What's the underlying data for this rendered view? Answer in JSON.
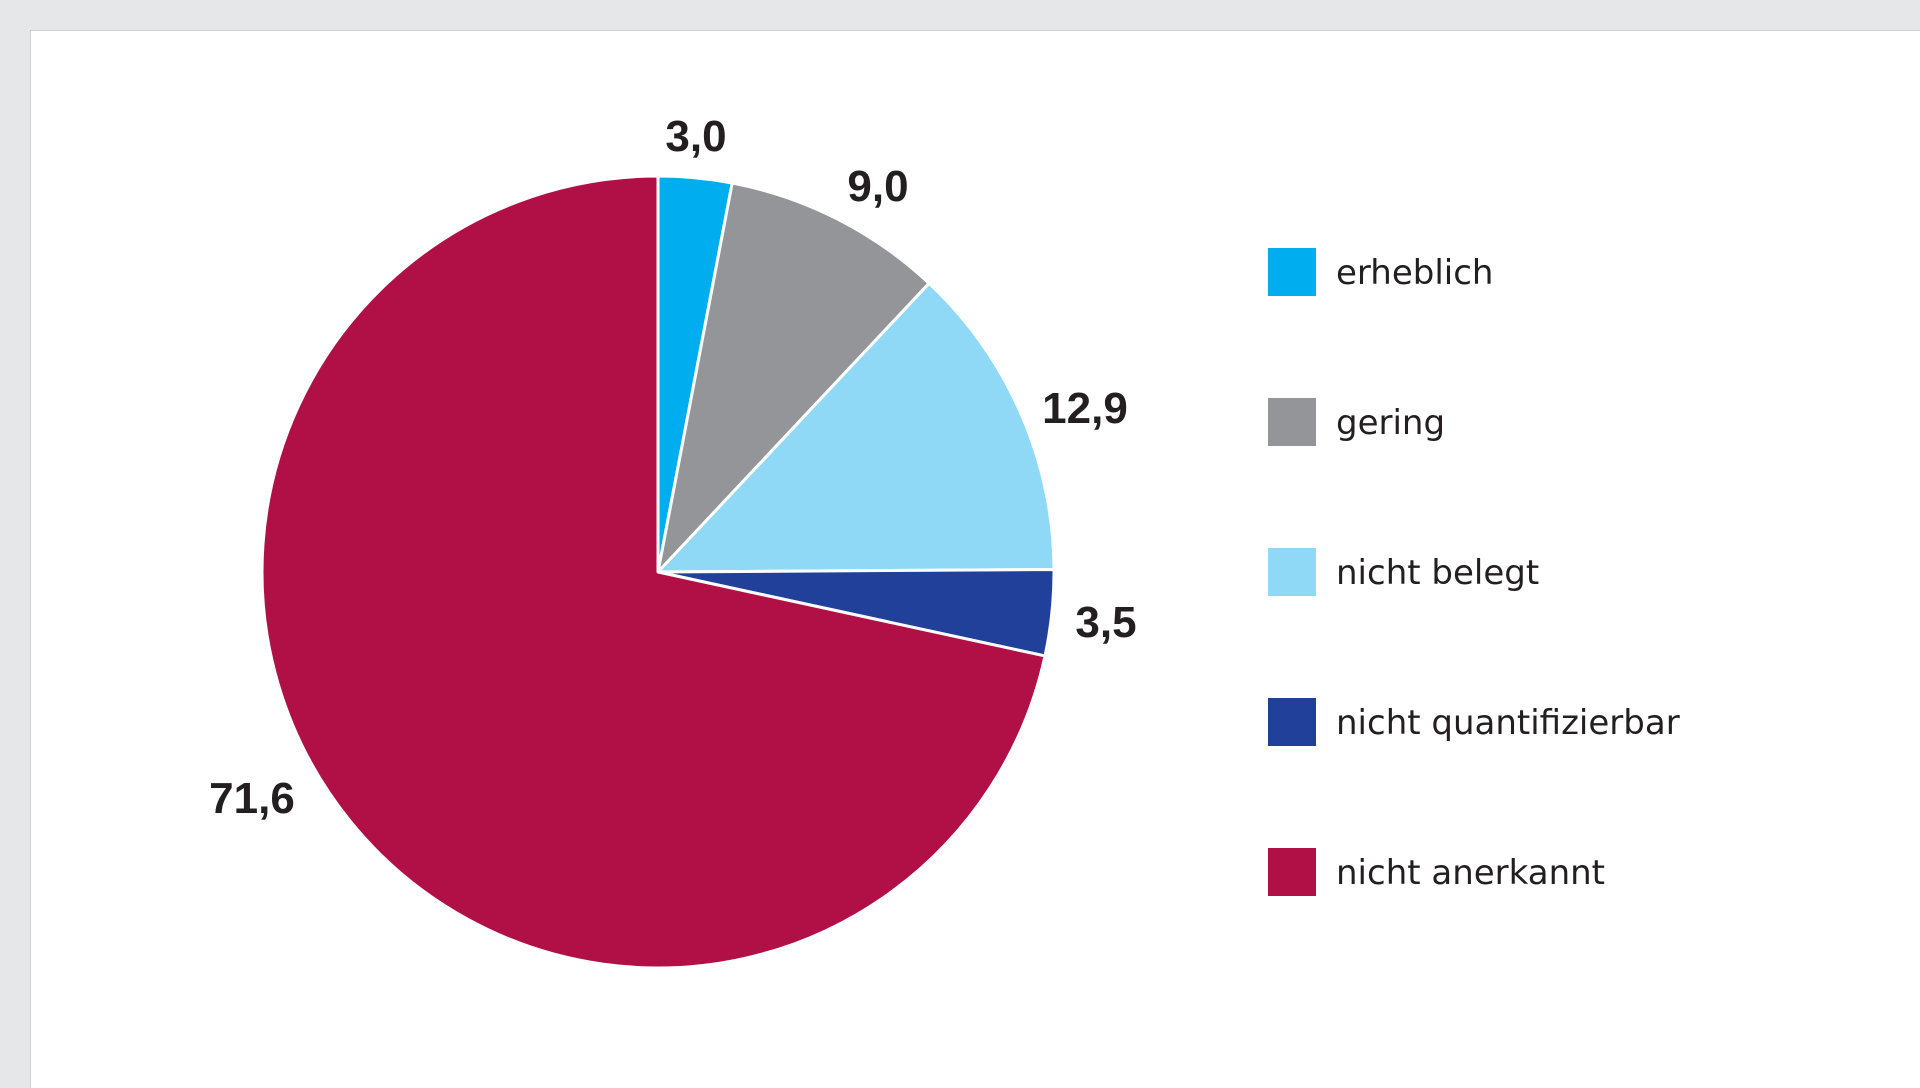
{
  "chart_data": {
    "type": "pie",
    "start": "12 o'clock",
    "direction": "clockwise",
    "slices": [
      {
        "label": "erheblich",
        "value": 3.0,
        "value_text": "3,0",
        "color": "#00aeef"
      },
      {
        "label": "gering",
        "value": 9.0,
        "value_text": "9,0",
        "color": "#939598"
      },
      {
        "label": "nicht belegt",
        "value": 12.9,
        "value_text": "12,9",
        "color": "#8fd8f6"
      },
      {
        "label": "nicht quantifizierbar",
        "value": 3.5,
        "value_text": "3,5",
        "color": "#21409a"
      },
      {
        "label": "nicht anerkannt",
        "value": 71.6,
        "value_text": "71,6",
        "color": "#b01045"
      }
    ],
    "legend_position": "right"
  }
}
